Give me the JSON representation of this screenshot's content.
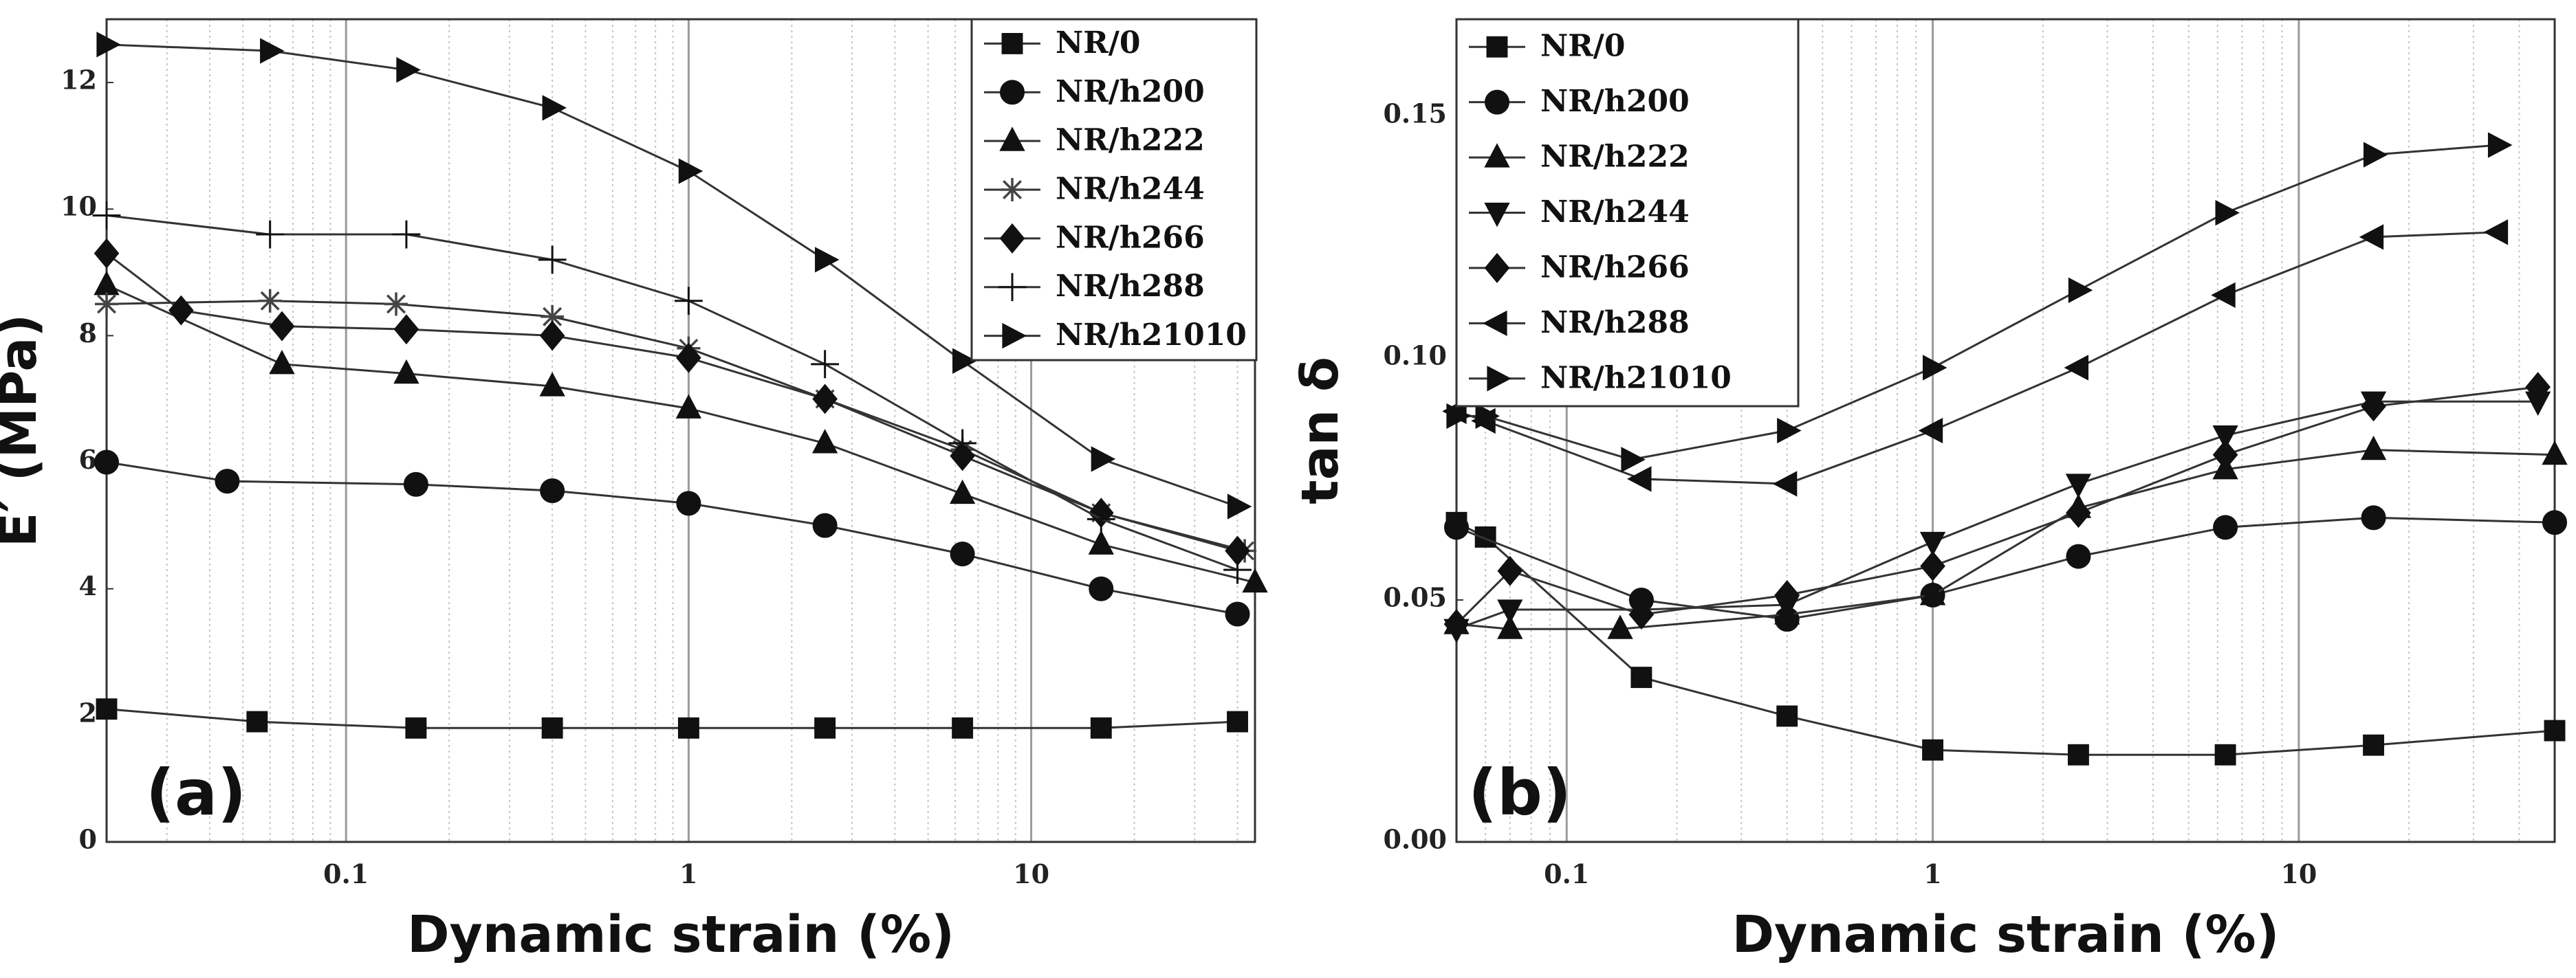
{
  "chart_data": [
    {
      "type": "line",
      "panel_label": "(a)",
      "xlabel": "Dynamic strain (%)",
      "ylabel": "E′ (MPa)",
      "xscale": "log",
      "xlim": [
        0.02,
        45
      ],
      "ylim": [
        0,
        13
      ],
      "xticks": [
        0.1,
        1,
        10
      ],
      "xtick_labels": [
        "0.1",
        "1",
        "10"
      ],
      "yticks": [
        0,
        2,
        4,
        6,
        8,
        10,
        12
      ],
      "ytick_labels": [
        "0",
        "2",
        "4",
        "6",
        "8",
        "10",
        "12"
      ],
      "grid": "vertical log grid",
      "legend_position": "top-right",
      "series": [
        {
          "name": "NR/0",
          "marker": "square",
          "x": [
            0.02,
            0.055,
            0.16,
            0.4,
            1,
            2.5,
            6.3,
            16,
            40
          ],
          "y": [
            2.1,
            1.9,
            1.8,
            1.8,
            1.8,
            1.8,
            1.8,
            1.8,
            1.9
          ]
        },
        {
          "name": "NR/h200",
          "marker": "circle",
          "x": [
            0.02,
            0.045,
            0.16,
            0.4,
            1,
            2.5,
            6.3,
            16,
            40
          ],
          "y": [
            6.0,
            5.7,
            5.65,
            5.55,
            5.35,
            5.0,
            4.55,
            4.0,
            3.6
          ]
        },
        {
          "name": "NR/h222",
          "marker": "triangle-up",
          "x": [
            0.02,
            0.065,
            0.15,
            0.4,
            1,
            2.5,
            6.3,
            16,
            45
          ],
          "y": [
            8.8,
            7.55,
            7.4,
            7.2,
            6.85,
            6.3,
            5.5,
            4.7,
            4.1
          ]
        },
        {
          "name": "NR/h244",
          "marker": "asterisk",
          "x": [
            0.02,
            0.06,
            0.14,
            0.4,
            1,
            2.5,
            6.3,
            16,
            42
          ],
          "y": [
            8.5,
            8.55,
            8.5,
            8.3,
            7.8,
            7.0,
            6.2,
            5.2,
            4.6
          ]
        },
        {
          "name": "NR/h266",
          "marker": "diamond",
          "x": [
            0.02,
            0.033,
            0.065,
            0.15,
            0.4,
            1,
            2.5,
            6.3,
            16,
            40
          ],
          "y": [
            9.3,
            8.4,
            8.15,
            8.1,
            8.0,
            7.65,
            7.0,
            6.1,
            5.2,
            4.6
          ]
        },
        {
          "name": "NR/h288",
          "marker": "plus",
          "x": [
            0.02,
            0.06,
            0.15,
            0.4,
            1,
            2.5,
            6.3,
            16,
            40
          ],
          "y": [
            9.9,
            9.6,
            9.6,
            9.2,
            8.55,
            7.55,
            6.3,
            5.1,
            4.3
          ]
        },
        {
          "name": "NR/h21010",
          "marker": "triangle-right",
          "x": [
            0.02,
            0.06,
            0.15,
            0.4,
            1,
            2.5,
            6.3,
            16,
            40
          ],
          "y": [
            12.6,
            12.5,
            12.2,
            11.6,
            10.6,
            9.2,
            7.6,
            6.05,
            5.3
          ]
        }
      ]
    },
    {
      "type": "line",
      "panel_label": "(b)",
      "xlabel": "Dynamic strain (%)",
      "ylabel": "tan δ",
      "xscale": "log",
      "xlim": [
        0.05,
        50
      ],
      "ylim": [
        0,
        0.17
      ],
      "xticks": [
        0.1,
        1,
        10
      ],
      "xtick_labels": [
        "0.1",
        "1",
        "10"
      ],
      "yticks": [
        0,
        0.05,
        0.1,
        0.15
      ],
      "ytick_labels": [
        "0.00",
        "0.05",
        "0.10",
        "0.15"
      ],
      "grid": "vertical log grid",
      "legend_position": "top-left",
      "series": [
        {
          "name": "NR/0",
          "marker": "square",
          "x": [
            0.05,
            0.06,
            0.16,
            0.4,
            1,
            2.5,
            6.3,
            16,
            50
          ],
          "y": [
            0.066,
            0.063,
            0.034,
            0.026,
            0.019,
            0.018,
            0.018,
            0.02,
            0.023
          ]
        },
        {
          "name": "NR/h200",
          "marker": "circle",
          "x": [
            0.05,
            0.16,
            0.4,
            1,
            2.5,
            6.3,
            16,
            50
          ],
          "y": [
            0.065,
            0.05,
            0.046,
            0.051,
            0.059,
            0.065,
            0.067,
            0.066
          ]
        },
        {
          "name": "NR/h222",
          "marker": "triangle-up",
          "x": [
            0.05,
            0.07,
            0.14,
            0.4,
            1,
            2.5,
            6.3,
            16,
            50
          ],
          "y": [
            0.045,
            0.044,
            0.044,
            0.047,
            0.051,
            0.069,
            0.077,
            0.081,
            0.08
          ]
        },
        {
          "name": "NR/h244",
          "marker": "triangle-down",
          "x": [
            0.05,
            0.07,
            0.16,
            0.4,
            1,
            2.5,
            6.3,
            16,
            45
          ],
          "y": [
            0.044,
            0.048,
            0.048,
            0.049,
            0.062,
            0.074,
            0.084,
            0.091,
            0.091
          ]
        },
        {
          "name": "NR/h266",
          "marker": "diamond",
          "x": [
            0.05,
            0.07,
            0.16,
            0.4,
            1,
            2.5,
            6.3,
            16,
            45
          ],
          "y": [
            0.045,
            0.056,
            0.047,
            0.051,
            0.057,
            0.068,
            0.08,
            0.09,
            0.094
          ]
        },
        {
          "name": "NR/h288",
          "marker": "triangle-left",
          "x": [
            0.05,
            0.06,
            0.16,
            0.4,
            1,
            2.5,
            6.3,
            16,
            35
          ],
          "y": [
            0.089,
            0.087,
            0.075,
            0.074,
            0.085,
            0.098,
            0.113,
            0.125,
            0.126
          ]
        },
        {
          "name": "NR/h21010",
          "marker": "triangle-right",
          "x": [
            0.05,
            0.06,
            0.15,
            0.4,
            1,
            2.5,
            6.3,
            16,
            35
          ],
          "y": [
            0.088,
            0.088,
            0.079,
            0.085,
            0.098,
            0.114,
            0.13,
            0.142,
            0.144
          ]
        }
      ]
    }
  ]
}
